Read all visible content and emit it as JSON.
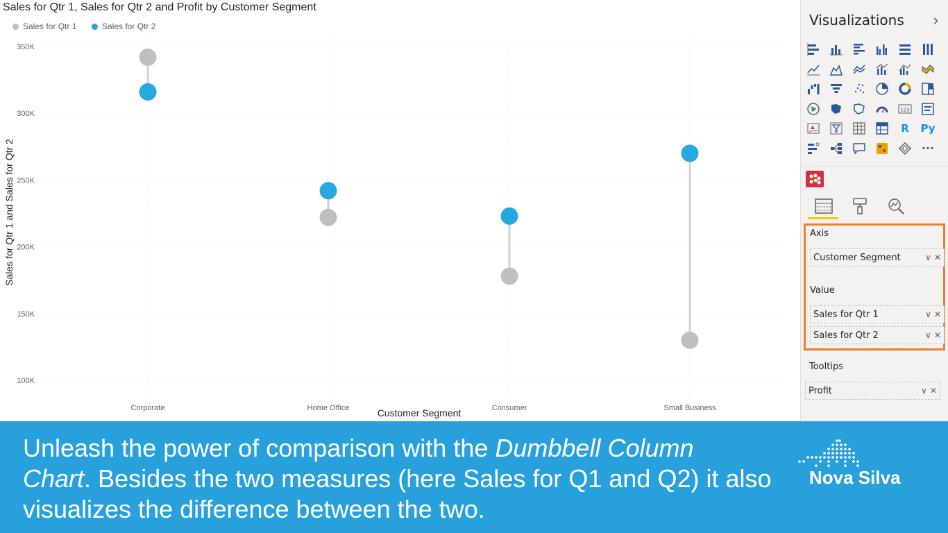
{
  "chart_data": {
    "type": "dumbbell-column",
    "title": "Sales for Qtr 1, Sales for Qtr 2 and Profit by Customer Segment",
    "xlabel": "Customer Segment",
    "ylabel": "Sales for Qtr 1 and Sales for Qtr 2",
    "categories": [
      "Corporate",
      "Home Office",
      "Consumer",
      "Small Business"
    ],
    "series": [
      {
        "name": "Sales for Qtr 1",
        "color": "#bfbfbf",
        "values": [
          342000,
          222000,
          178000,
          130000
        ]
      },
      {
        "name": "Sales for Qtr 2",
        "color": "#27a8e0",
        "values": [
          316000,
          242000,
          223000,
          270000
        ]
      }
    ],
    "ylim": [
      92000,
      357000
    ],
    "yticks": [
      100000,
      150000,
      200000,
      250000,
      300000,
      350000
    ],
    "ytick_labels": [
      "100K",
      "150K",
      "200K",
      "250K",
      "300K",
      "350K"
    ],
    "connector_color": "#d0d0d0",
    "grid": true
  },
  "legend": {
    "q1_label": "Sales for Qtr 1",
    "q2_label": "Sales for Qtr 2",
    "q1_color": "#bfbfbf",
    "q2_color": "#27a8e0"
  },
  "viz_pane": {
    "title": "Visualizations",
    "chevron": "›",
    "icons": [
      "stacked-bar-icon",
      "stacked-column-icon",
      "clustered-bar-icon",
      "clustered-column-icon",
      "100-bar-icon",
      "100-column-icon",
      "line-chart-icon",
      "area-chart-icon",
      "stacked-area-icon",
      "line-column-icon",
      "line-clustered-icon",
      "ribbon-chart-icon",
      "waterfall-icon",
      "funnel-icon",
      "scatter-icon",
      "pie-icon",
      "donut-icon",
      "treemap-icon",
      "map-icon",
      "filled-map-icon",
      "shape-map-icon",
      "gauge-icon",
      "card-icon",
      "multi-row-card-icon",
      "kpi-icon",
      "slicer-icon",
      "table-icon",
      "matrix-icon",
      "r-visual-icon",
      "python-visual-icon",
      "key-influencers-icon",
      "decomposition-tree-icon",
      "qa-icon",
      "custom-visual-icon",
      "power-apps-icon",
      "more-icon"
    ],
    "r_label": "R",
    "py_label": "Py",
    "more_label": "···",
    "tabs": [
      "fields-tab-icon",
      "format-tab-icon",
      "analytics-tab-icon"
    ],
    "wells": {
      "axis_label": "Axis",
      "axis_fields": [
        "Customer Segment"
      ],
      "value_label": "Value",
      "value_fields": [
        "Sales for Qtr 1",
        "Sales for Qtr 2"
      ],
      "tooltips_label": "Tooltips",
      "tooltip_fields": [
        "Profit"
      ],
      "highlight_color": "#ed7d31"
    }
  },
  "caption": {
    "part1": "Unleash the power of comparison with the ",
    "emph1": "Dumbbell Column",
    "emph2": "Chart",
    "part2": ". Besides the two measures (here Sales for Q1 and Q2) it also visualizes the difference between the two."
  },
  "logo": {
    "text": "Nova Silva"
  },
  "colors": {
    "banner": "#27a0dc",
    "q1": "#bfbfbf",
    "q2": "#27a8e0"
  }
}
